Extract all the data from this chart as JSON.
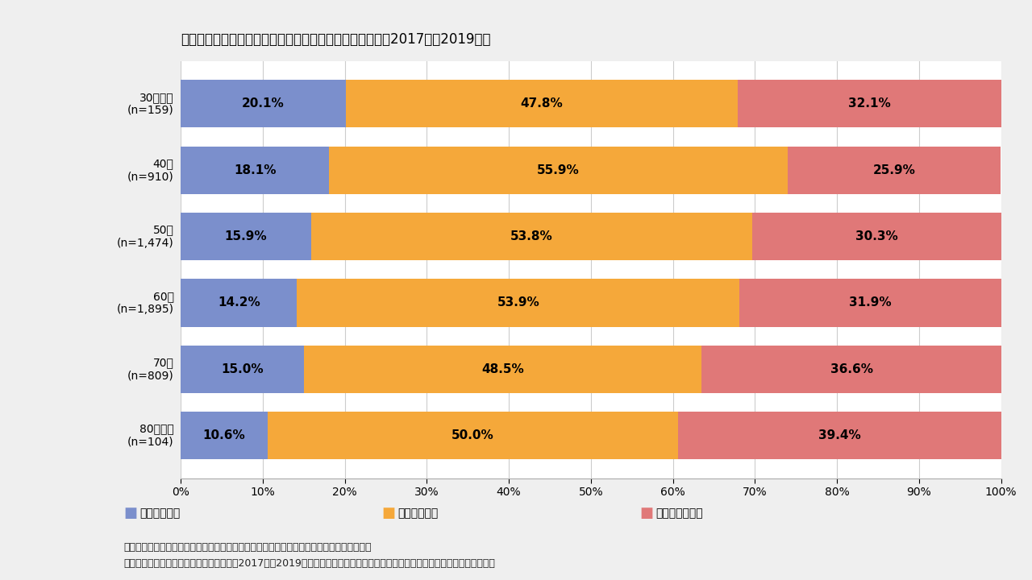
{
  "title": "経営者年齢別、設備投資（維持・更新除く）の実施状況（2017年～2019年）",
  "categories": [
    "30代以下\n(n=159)",
    "40代\n(n=910)",
    "50代\n(n=1,474)",
    "60代\n(n=1,895)",
    "70代\n(n=809)",
    "80代以上\n(n=104)"
  ],
  "values_blue": [
    20.1,
    18.1,
    15.9,
    14.2,
    15.0,
    10.6
  ],
  "values_orange": [
    47.8,
    55.9,
    53.8,
    53.9,
    48.5,
    50.0
  ],
  "values_red": [
    32.1,
    25.9,
    30.3,
    31.9,
    36.6,
    39.4
  ],
  "color_blue": "#7b8fcc",
  "color_orange": "#f5a83a",
  "color_red": "#e07878",
  "legend_labels": [
    "積極的に実施",
    "ある程度実施",
    "実施していない"
  ],
  "note_line1": "資料：（株）東京商工リサーチ「中小企業の財務・経営及び事業承継に関するアンケート」",
  "note_line2": "（注）新型コロナウイルス感染症流行前（2017年～2019年）の設備投資（維持・更新除く）の実施状況について確認したもの。",
  "bg_color": "#efefef",
  "plot_bg_color": "#ffffff",
  "title_fontsize": 12,
  "bar_label_fontsize": 11,
  "ytick_fontsize": 10,
  "xtick_fontsize": 10,
  "legend_fontsize": 10,
  "note_fontsize": 9
}
